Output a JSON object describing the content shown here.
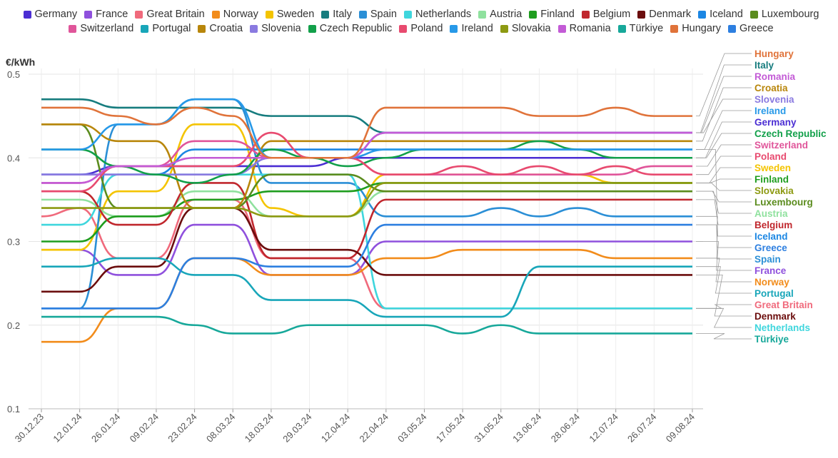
{
  "chart_data": {
    "type": "line",
    "ylabel": "€/kWh",
    "ylim": [
      0.1,
      0.5
    ],
    "yticks": [
      "0.1",
      "0.2",
      "0.3",
      "0.4",
      "0.5"
    ],
    "xlabels": [
      "30.12.23",
      "12.01.24",
      "26.01.24",
      "09.02.24",
      "23.02.24",
      "08.03.24",
      "18.03.24",
      "29.03.24",
      "12.04.24",
      "22.04.24",
      "03.05.24",
      "17.05.24",
      "31.05.24",
      "13.06.24",
      "28.06.24",
      "12.07.24",
      "26.07.24",
      "09.08.24"
    ],
    "series": [
      {
        "name": "Germany",
        "color": "#4b2ed3",
        "values": [
          0.38,
          0.38,
          0.39,
          0.39,
          0.39,
          0.39,
          0.39,
          0.39,
          0.4,
          0.4,
          0.4,
          0.4,
          0.4,
          0.4,
          0.4,
          0.4,
          0.4,
          0.4
        ]
      },
      {
        "name": "France",
        "color": "#8f50dd",
        "values": [
          0.29,
          0.29,
          0.26,
          0.26,
          0.32,
          0.32,
          0.26,
          0.26,
          0.26,
          0.3,
          0.3,
          0.3,
          0.3,
          0.3,
          0.3,
          0.3,
          0.3,
          0.3
        ]
      },
      {
        "name": "Great Britain",
        "color": "#f06a7c",
        "values": [
          0.33,
          0.34,
          0.28,
          0.28,
          0.35,
          0.35,
          0.28,
          0.28,
          0.28,
          0.22,
          0.22,
          0.22,
          0.22,
          0.22,
          0.22,
          0.22,
          0.22,
          0.22
        ]
      },
      {
        "name": "Norway",
        "color": "#f28c1b",
        "values": [
          0.18,
          0.18,
          0.22,
          0.22,
          0.28,
          0.28,
          0.26,
          0.26,
          0.26,
          0.28,
          0.28,
          0.29,
          0.29,
          0.29,
          0.29,
          0.28,
          0.28,
          0.28
        ]
      },
      {
        "name": "Sweden",
        "color": "#f4c400",
        "values": [
          0.29,
          0.29,
          0.36,
          0.36,
          0.44,
          0.44,
          0.34,
          0.33,
          0.33,
          0.38,
          0.38,
          0.38,
          0.38,
          0.38,
          0.38,
          0.37,
          0.37,
          0.37
        ]
      },
      {
        "name": "Italy",
        "color": "#167c7e",
        "values": [
          0.47,
          0.47,
          0.46,
          0.46,
          0.46,
          0.46,
          0.45,
          0.45,
          0.45,
          0.43,
          0.43,
          0.43,
          0.43,
          0.43,
          0.43,
          0.43,
          0.43,
          0.43
        ]
      },
      {
        "name": "Spain",
        "color": "#2b8fd6",
        "values": [
          0.22,
          0.22,
          0.44,
          0.44,
          0.47,
          0.47,
          0.37,
          0.37,
          0.37,
          0.33,
          0.33,
          0.33,
          0.34,
          0.33,
          0.34,
          0.33,
          0.33,
          0.33
        ]
      },
      {
        "name": "Netherlands",
        "color": "#3fd6dd",
        "values": [
          0.32,
          0.32,
          0.38,
          0.38,
          0.38,
          0.38,
          0.38,
          0.38,
          0.38,
          0.22,
          0.22,
          0.22,
          0.22,
          0.22,
          0.22,
          0.22,
          0.22,
          0.22
        ]
      },
      {
        "name": "Austria",
        "color": "#8fe19e",
        "values": [
          0.35,
          0.35,
          0.33,
          0.33,
          0.36,
          0.36,
          0.33,
          0.33,
          0.33,
          0.36,
          0.36,
          0.36,
          0.36,
          0.36,
          0.36,
          0.36,
          0.36,
          0.36
        ]
      },
      {
        "name": "Finland",
        "color": "#1f9d1f",
        "values": [
          0.3,
          0.3,
          0.33,
          0.33,
          0.35,
          0.35,
          0.36,
          0.36,
          0.36,
          0.37,
          0.37,
          0.37,
          0.37,
          0.37,
          0.37,
          0.37,
          0.37,
          0.37
        ]
      },
      {
        "name": "Belgium",
        "color": "#c0272d",
        "values": [
          0.36,
          0.36,
          0.32,
          0.32,
          0.37,
          0.37,
          0.28,
          0.28,
          0.28,
          0.35,
          0.35,
          0.35,
          0.35,
          0.35,
          0.35,
          0.35,
          0.35,
          0.35
        ]
      },
      {
        "name": "Denmark",
        "color": "#6b0d0d",
        "values": [
          0.24,
          0.24,
          0.27,
          0.27,
          0.34,
          0.34,
          0.29,
          0.29,
          0.29,
          0.26,
          0.26,
          0.26,
          0.26,
          0.26,
          0.26,
          0.26,
          0.26,
          0.26
        ]
      },
      {
        "name": "Iceland",
        "color": "#1b86e3",
        "values": [
          0.38,
          0.38,
          0.38,
          0.38,
          0.41,
          0.41,
          0.41,
          0.41,
          0.41,
          0.41,
          0.41,
          0.41,
          0.41,
          0.41,
          0.41,
          0.41,
          0.41,
          0.41
        ]
      },
      {
        "name": "Luxembourg",
        "color": "#5b8c1e",
        "values": [
          0.44,
          0.44,
          0.34,
          0.34,
          0.34,
          0.34,
          0.38,
          0.38,
          0.38,
          0.36,
          0.36,
          0.36,
          0.36,
          0.36,
          0.36,
          0.36,
          0.36,
          0.36
        ]
      },
      {
        "name": "Switzerland",
        "color": "#e0559a",
        "values": [
          0.37,
          0.37,
          0.39,
          0.39,
          0.42,
          0.42,
          0.4,
          0.4,
          0.4,
          0.38,
          0.38,
          0.38,
          0.38,
          0.38,
          0.38,
          0.38,
          0.39,
          0.39
        ]
      },
      {
        "name": "Portugal",
        "color": "#18a6b9",
        "values": [
          0.27,
          0.27,
          0.28,
          0.28,
          0.26,
          0.26,
          0.23,
          0.23,
          0.23,
          0.21,
          0.21,
          0.21,
          0.21,
          0.27,
          0.27,
          0.27,
          0.27,
          0.27
        ]
      },
      {
        "name": "Croatia",
        "color": "#b8860b",
        "values": [
          0.44,
          0.44,
          0.42,
          0.42,
          0.34,
          0.34,
          0.42,
          0.42,
          0.42,
          0.42,
          0.42,
          0.42,
          0.42,
          0.42,
          0.42,
          0.42,
          0.42,
          0.42
        ]
      },
      {
        "name": "Slovenia",
        "color": "#8a7ae0",
        "values": [
          0.38,
          0.38,
          0.38,
          0.38,
          0.38,
          0.38,
          0.4,
          0.4,
          0.4,
          0.43,
          0.43,
          0.43,
          0.43,
          0.43,
          0.43,
          0.43,
          0.43,
          0.43
        ]
      },
      {
        "name": "Czech Republic",
        "color": "#12a04a",
        "values": [
          0.41,
          0.41,
          0.39,
          0.38,
          0.37,
          0.38,
          0.41,
          0.4,
          0.39,
          0.4,
          0.41,
          0.41,
          0.41,
          0.42,
          0.41,
          0.4,
          0.4,
          0.4
        ]
      },
      {
        "name": "Poland",
        "color": "#e84a6f",
        "values": [
          0.36,
          0.36,
          0.39,
          0.39,
          0.39,
          0.39,
          0.43,
          0.4,
          0.4,
          0.38,
          0.38,
          0.39,
          0.38,
          0.39,
          0.38,
          0.39,
          0.38,
          0.38
        ]
      },
      {
        "name": "Ireland",
        "color": "#2799e8",
        "values": [
          0.41,
          0.41,
          0.44,
          0.44,
          0.47,
          0.47,
          0.4,
          0.4,
          0.4,
          0.41,
          0.41,
          0.41,
          0.41,
          0.41,
          0.41,
          0.41,
          0.41,
          0.41
        ]
      },
      {
        "name": "Slovakia",
        "color": "#8d9a12",
        "values": [
          0.34,
          0.34,
          0.34,
          0.34,
          0.34,
          0.34,
          0.33,
          0.33,
          0.33,
          0.37,
          0.37,
          0.37,
          0.37,
          0.37,
          0.37,
          0.37,
          0.37,
          0.37
        ]
      },
      {
        "name": "Romania",
        "color": "#c35bd6",
        "values": [
          0.37,
          0.37,
          0.39,
          0.39,
          0.4,
          0.4,
          0.4,
          0.4,
          0.4,
          0.43,
          0.43,
          0.43,
          0.43,
          0.43,
          0.43,
          0.43,
          0.43,
          0.43
        ]
      },
      {
        "name": "Türkiye",
        "color": "#17a89a",
        "values": [
          0.21,
          0.21,
          0.21,
          0.21,
          0.2,
          0.19,
          0.19,
          0.2,
          0.2,
          0.2,
          0.2,
          0.19,
          0.2,
          0.19,
          0.19,
          0.19,
          0.19,
          0.19
        ]
      },
      {
        "name": "Hungary",
        "color": "#e0733a",
        "values": [
          0.46,
          0.46,
          0.45,
          0.44,
          0.46,
          0.45,
          0.4,
          0.4,
          0.4,
          0.46,
          0.46,
          0.46,
          0.46,
          0.45,
          0.45,
          0.46,
          0.45,
          0.45
        ]
      },
      {
        "name": "Greece",
        "color": "#2d7fe0",
        "values": [
          0.22,
          0.22,
          0.22,
          0.22,
          0.28,
          0.28,
          0.27,
          0.27,
          0.27,
          0.32,
          0.32,
          0.32,
          0.32,
          0.32,
          0.32,
          0.32,
          0.32,
          0.32
        ]
      }
    ],
    "end_labels": [
      "Hungary",
      "Italy",
      "Romania",
      "Croatia",
      "Slovenia",
      "Ireland",
      "Germany",
      "Czech Republic",
      "Switzerland",
      "Poland",
      "Sweden",
      "Finland",
      "Slovakia",
      "Luxembourg",
      "Austria",
      "Belgium",
      "Iceland",
      "Greece",
      "Spain",
      "France",
      "Norway",
      "Portugal",
      "Great Britain",
      "Denmark",
      "Netherlands",
      "Türkiye"
    ]
  }
}
